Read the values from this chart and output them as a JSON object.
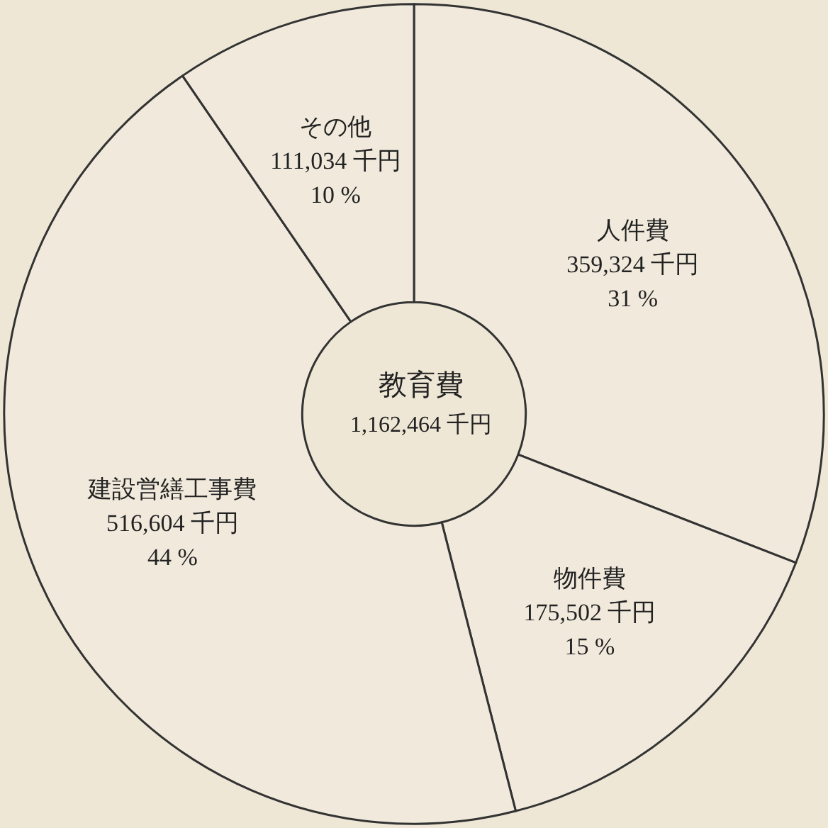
{
  "chart_data": {
    "type": "donut",
    "title": "教育費",
    "subtitle": "1,162,464 千円",
    "categories": [
      "人件費",
      "物件費",
      "建設営繕工事費",
      "その他"
    ],
    "values": [
      359324,
      175502,
      516604,
      111034
    ],
    "colors": [
      "#f1eadc",
      "#f1eadc",
      "#f1eadc",
      "#f1eadc"
    ],
    "value_labels": [
      "359,324 千円\n31 %",
      "175,502 千円\n15 %",
      "516,604 千円\n44 %",
      "111,034 千円\n10 %"
    ],
    "legend": false
  }
}
